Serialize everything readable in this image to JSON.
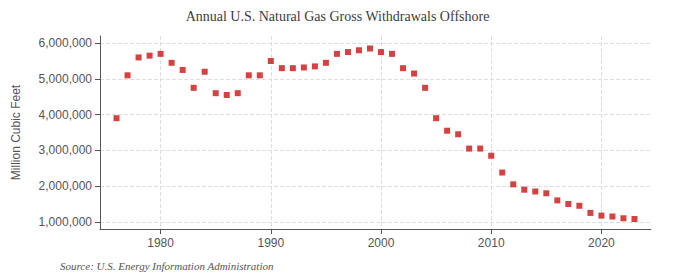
{
  "chart_data": {
    "type": "scatter",
    "title": "Annual U.S. Natural Gas Gross Withdrawals Offshore",
    "ylabel": "Million Cubic Feet",
    "annotations": [
      "Source: U.S. Energy Information Administration"
    ],
    "x": [
      1976,
      1977,
      1978,
      1979,
      1980,
      1981,
      1982,
      1983,
      1984,
      1985,
      1986,
      1987,
      1988,
      1989,
      1990,
      1991,
      1992,
      1993,
      1994,
      1995,
      1996,
      1997,
      1998,
      1999,
      2000,
      2001,
      2002,
      2003,
      2004,
      2005,
      2006,
      2007,
      2008,
      2009,
      2010,
      2011,
      2012,
      2013,
      2014,
      2015,
      2016,
      2017,
      2018,
      2019,
      2020,
      2021,
      2022,
      2023
    ],
    "values": [
      3900000,
      5100000,
      5600000,
      5650000,
      5700000,
      5450000,
      5250000,
      4750000,
      5200000,
      4600000,
      4550000,
      4600000,
      5100000,
      5100000,
      5500000,
      5300000,
      5300000,
      5320000,
      5350000,
      5450000,
      5700000,
      5750000,
      5800000,
      5850000,
      5750000,
      5700000,
      5300000,
      5150000,
      4750000,
      3900000,
      3550000,
      3450000,
      3050000,
      3050000,
      2850000,
      2380000,
      2050000,
      1900000,
      1850000,
      1800000,
      1600000,
      1500000,
      1450000,
      1250000,
      1175000,
      1150000,
      1100000,
      1080000
    ],
    "color": "#cc1111",
    "marker": "square",
    "xlim": [
      1974.5,
      2024.5
    ],
    "xticks": [
      1980,
      1990,
      2000,
      2010,
      2020
    ],
    "ylim": [
      800000,
      6200000
    ],
    "yticks": [
      {
        "value": 1000000,
        "label": "1,000,000"
      },
      {
        "value": 2000000,
        "label": "2,000,000"
      },
      {
        "value": 3000000,
        "label": "3,000,000"
      },
      {
        "value": 4000000,
        "label": "4,000,000"
      },
      {
        "value": 5000000,
        "label": "5,000,000"
      },
      {
        "value": 6000000,
        "label": "6,000,000"
      }
    ],
    "grid": true
  }
}
